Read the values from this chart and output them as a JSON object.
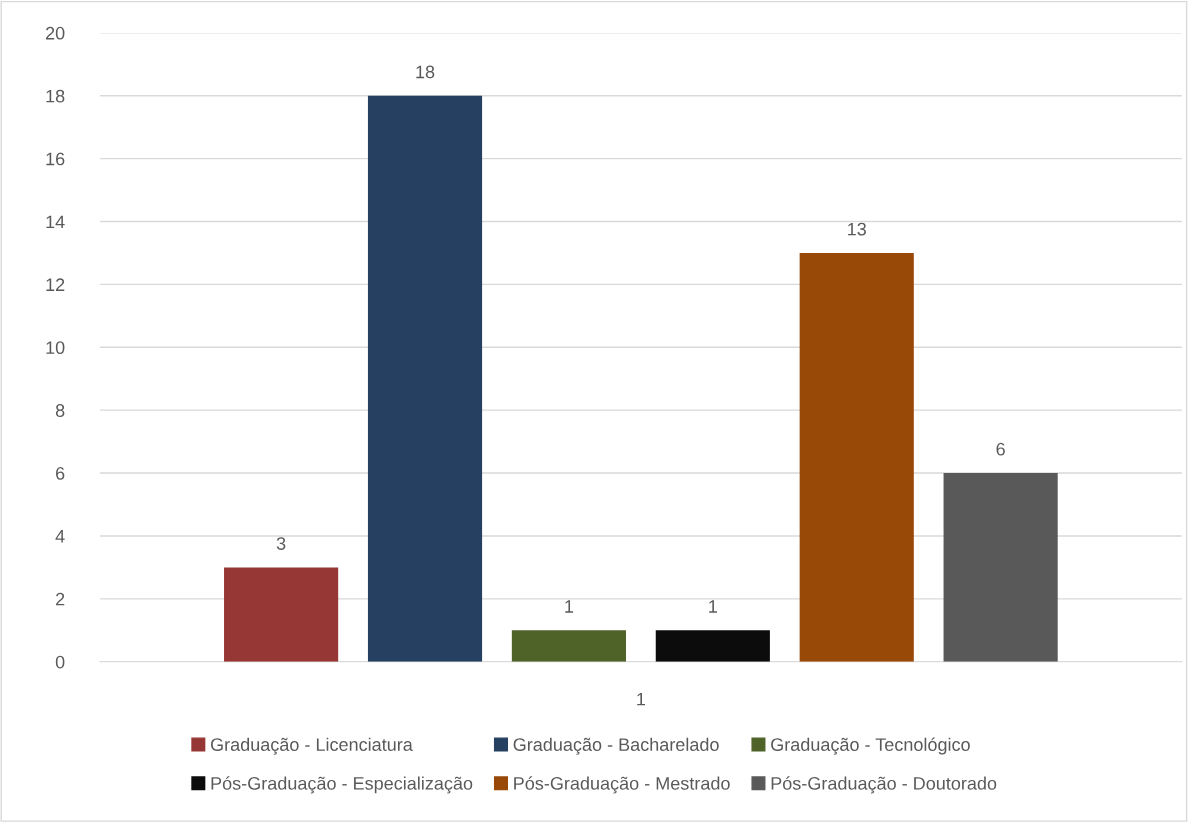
{
  "chart_data": {
    "type": "bar",
    "categories": [
      "1"
    ],
    "series": [
      {
        "name": "Graduação - Licenciatura",
        "color": "#963735",
        "values": [
          3
        ]
      },
      {
        "name": "Graduação - Bacharelado",
        "color": "#254061",
        "values": [
          18
        ]
      },
      {
        "name": "Graduação - Tecnológico",
        "color": "#4f6228",
        "values": [
          1
        ]
      },
      {
        "name": "Pós-Graduação - Especialização",
        "color": "#0c0c0c",
        "values": [
          1
        ]
      },
      {
        "name": "Pós-Graduação - Mestrado",
        "color": "#984807",
        "values": [
          13
        ]
      },
      {
        "name": "Pós-Graduação - Doutorado",
        "color": "#595959",
        "values": [
          6
        ]
      }
    ],
    "ylim": [
      0,
      20
    ],
    "yticks": [
      0,
      2,
      4,
      6,
      8,
      10,
      12,
      14,
      16,
      18,
      20
    ],
    "grid": "y",
    "legend": "bottom",
    "data_labels": true
  }
}
